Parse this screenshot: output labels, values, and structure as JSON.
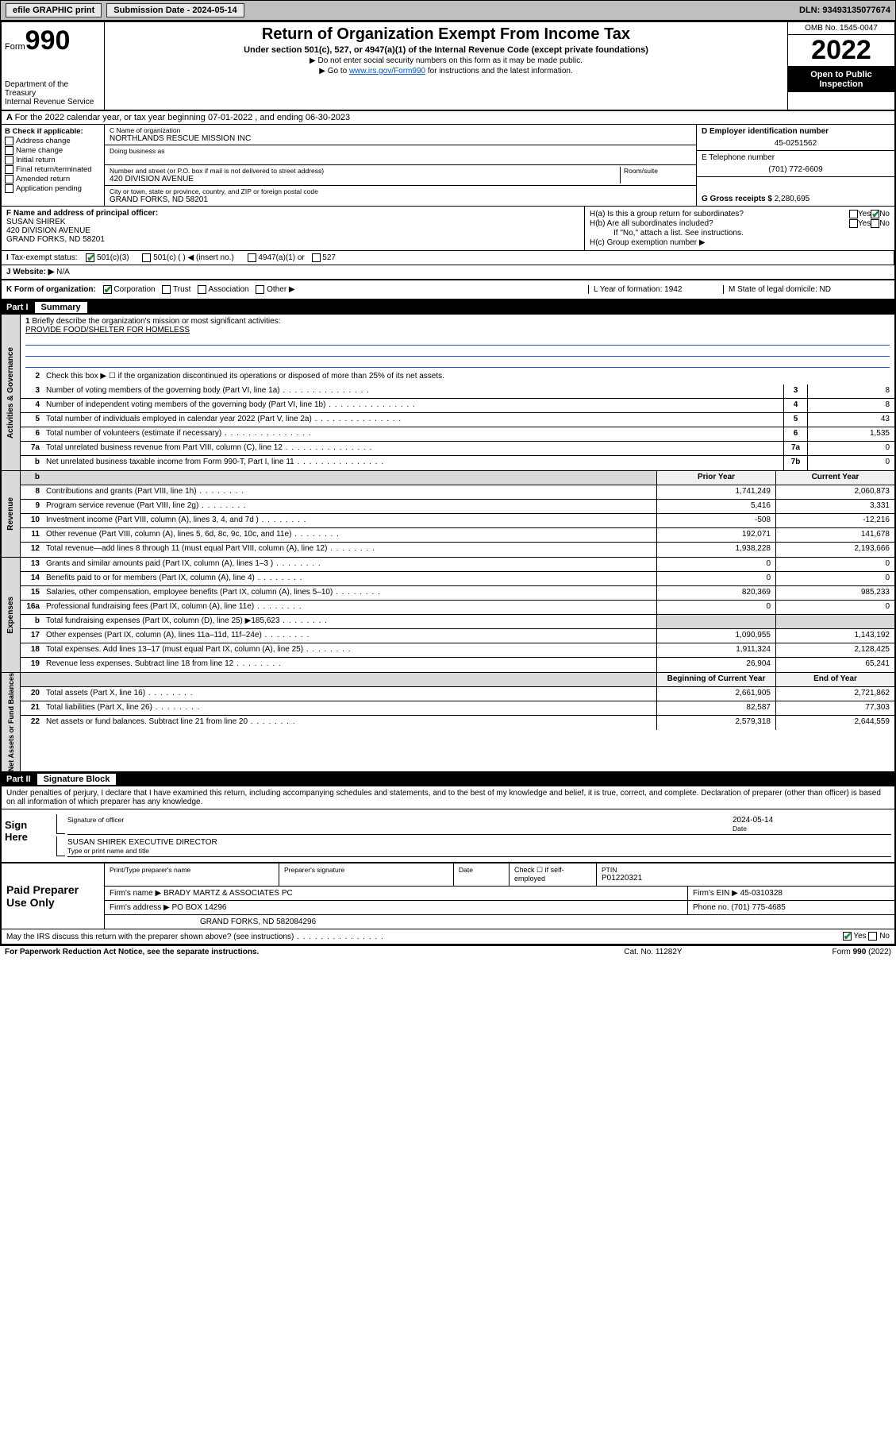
{
  "topbar": {
    "efile": "efile GRAPHIC print",
    "submission_label": "Submission Date - 2024-05-14",
    "dln": "DLN: 93493135077674"
  },
  "header": {
    "form_word": "Form",
    "form_num": "990",
    "title": "Return of Organization Exempt From Income Tax",
    "subtitle": "Under section 501(c), 527, or 4947(a)(1) of the Internal Revenue Code (except private foundations)",
    "note1": "▶ Do not enter social security numbers on this form as it may be made public.",
    "note2_pre": "▶ Go to ",
    "note2_link": "www.irs.gov/Form990",
    "note2_post": " for instructions and the latest information.",
    "omb": "OMB No. 1545-0047",
    "year": "2022",
    "open": "Open to Public Inspection",
    "dept": "Department of the Treasury",
    "irs": "Internal Revenue Service"
  },
  "row_a": "For the 2022 calendar year, or tax year beginning 07-01-2022   , and ending 06-30-2023",
  "col_b": {
    "header": "B Check if applicable:",
    "items": [
      "Address change",
      "Name change",
      "Initial return",
      "Final return/terminated",
      "Amended return",
      "Application pending"
    ]
  },
  "col_c": {
    "c_label": "C Name of organization",
    "c_name": "NORTHLANDS RESCUE MISSION INC",
    "dba_label": "Doing business as",
    "addr_label": "Number and street (or P.O. box if mail is not delivered to street address)",
    "room_label": "Room/suite",
    "addr": "420 DIVISION AVENUE",
    "city_label": "City or town, state or province, country, and ZIP or foreign postal code",
    "city": "GRAND FORKS, ND  58201"
  },
  "col_d": {
    "d_label": "D Employer identification number",
    "ein": "45-0251562",
    "e_label": "E Telephone number",
    "phone": "(701) 772-6609",
    "g_label": "G Gross receipts $",
    "gross": "2,280,695"
  },
  "col_f": {
    "label": "F Name and address of principal officer:",
    "name": "SUSAN SHIREK",
    "addr1": "420 DIVISION AVENUE",
    "addr2": "GRAND FORKS, ND  58201"
  },
  "col_h": {
    "ha": "H(a)  Is this a group return for subordinates?",
    "hb": "H(b)  Are all subordinates included?",
    "hb_note": "If \"No,\" attach a list. See instructions.",
    "hc": "H(c)  Group exemption number ▶",
    "yes": "Yes",
    "no": "No"
  },
  "row_i": {
    "label": "Tax-exempt status:",
    "opt1": "501(c)(3)",
    "opt2": "501(c) (  ) ◀ (insert no.)",
    "opt3": "4947(a)(1) or",
    "opt4": "527"
  },
  "row_j": {
    "label": "Website: ▶",
    "val": "N/A"
  },
  "row_k": {
    "label": "K Form of organization:",
    "opts": [
      "Corporation",
      "Trust",
      "Association",
      "Other ▶"
    ],
    "l": "L Year of formation: 1942",
    "m": "M State of legal domicile: ND"
  },
  "part1": {
    "num": "Part I",
    "title": "Summary"
  },
  "governance": {
    "label": "Activities & Governance",
    "q1": "Briefly describe the organization's mission or most significant activities:",
    "q1_ans": "PROVIDE FOOD/SHELTER FOR HOMELESS",
    "q2": "Check this box ▶ ☐  if the organization discontinued its operations or disposed of more than 25% of its net assets.",
    "rows": [
      {
        "n": "3",
        "t": "Number of voting members of the governing body (Part VI, line 1a)",
        "b": "3",
        "v": "8"
      },
      {
        "n": "4",
        "t": "Number of independent voting members of the governing body (Part VI, line 1b)",
        "b": "4",
        "v": "8"
      },
      {
        "n": "5",
        "t": "Total number of individuals employed in calendar year 2022 (Part V, line 2a)",
        "b": "5",
        "v": "43"
      },
      {
        "n": "6",
        "t": "Total number of volunteers (estimate if necessary)",
        "b": "6",
        "v": "1,535"
      },
      {
        "n": "7a",
        "t": "Total unrelated business revenue from Part VIII, column (C), line 12",
        "b": "7a",
        "v": "0"
      },
      {
        "n": "b",
        "t": "Net unrelated business taxable income from Form 990-T, Part I, line 11",
        "b": "7b",
        "v": "0"
      }
    ]
  },
  "revenue": {
    "label": "Revenue",
    "hdr_prior": "Prior Year",
    "hdr_curr": "Current Year",
    "rows": [
      {
        "n": "8",
        "t": "Contributions and grants (Part VIII, line 1h)",
        "p": "1,741,249",
        "c": "2,060,873"
      },
      {
        "n": "9",
        "t": "Program service revenue (Part VIII, line 2g)",
        "p": "5,416",
        "c": "3,331"
      },
      {
        "n": "10",
        "t": "Investment income (Part VIII, column (A), lines 3, 4, and 7d )",
        "p": "-508",
        "c": "-12,216"
      },
      {
        "n": "11",
        "t": "Other revenue (Part VIII, column (A), lines 5, 6d, 8c, 9c, 10c, and 11e)",
        "p": "192,071",
        "c": "141,678"
      },
      {
        "n": "12",
        "t": "Total revenue—add lines 8 through 11 (must equal Part VIII, column (A), line 12)",
        "p": "1,938,228",
        "c": "2,193,666"
      }
    ]
  },
  "expenses": {
    "label": "Expenses",
    "rows": [
      {
        "n": "13",
        "t": "Grants and similar amounts paid (Part IX, column (A), lines 1–3 )",
        "p": "0",
        "c": "0"
      },
      {
        "n": "14",
        "t": "Benefits paid to or for members (Part IX, column (A), line 4)",
        "p": "0",
        "c": "0"
      },
      {
        "n": "15",
        "t": "Salaries, other compensation, employee benefits (Part IX, column (A), lines 5–10)",
        "p": "820,369",
        "c": "985,233"
      },
      {
        "n": "16a",
        "t": "Professional fundraising fees (Part IX, column (A), line 11e)",
        "p": "0",
        "c": "0"
      },
      {
        "n": "b",
        "t": "Total fundraising expenses (Part IX, column (D), line 25) ▶185,623",
        "p": "",
        "c": "",
        "gray": true
      },
      {
        "n": "17",
        "t": "Other expenses (Part IX, column (A), lines 11a–11d, 11f–24e)",
        "p": "1,090,955",
        "c": "1,143,192"
      },
      {
        "n": "18",
        "t": "Total expenses. Add lines 13–17 (must equal Part IX, column (A), line 25)",
        "p": "1,911,324",
        "c": "2,128,425"
      },
      {
        "n": "19",
        "t": "Revenue less expenses. Subtract line 18 from line 12",
        "p": "26,904",
        "c": "65,241"
      }
    ]
  },
  "netassets": {
    "label": "Net Assets or Fund Balances",
    "hdr_beg": "Beginning of Current Year",
    "hdr_end": "End of Year",
    "rows": [
      {
        "n": "20",
        "t": "Total assets (Part X, line 16)",
        "p": "2,661,905",
        "c": "2,721,862"
      },
      {
        "n": "21",
        "t": "Total liabilities (Part X, line 26)",
        "p": "82,587",
        "c": "77,303"
      },
      {
        "n": "22",
        "t": "Net assets or fund balances. Subtract line 21 from line 20",
        "p": "2,579,318",
        "c": "2,644,559"
      }
    ]
  },
  "part2": {
    "num": "Part II",
    "title": "Signature Block"
  },
  "sig": {
    "decl": "Under penalties of perjury, I declare that I have examined this return, including accompanying schedules and statements, and to the best of my knowledge and belief, it is true, correct, and complete. Declaration of preparer (other than officer) is based on all information of which preparer has any knowledge.",
    "sign_here": "Sign Here",
    "sig_officer": "Signature of officer",
    "date_label": "Date",
    "date": "2024-05-14",
    "name": "SUSAN SHIREK  EXECUTIVE DIRECTOR",
    "name_label": "Type or print name and title"
  },
  "prep": {
    "label": "Paid Preparer Use Only",
    "h1": "Print/Type preparer's name",
    "h2": "Preparer's signature",
    "h3": "Date",
    "h4_pre": "Check ☐ if self-employed",
    "h5": "PTIN",
    "ptin": "P01220321",
    "firm_name_label": "Firm's name      ▶",
    "firm_name": "BRADY MARTZ & ASSOCIATES PC",
    "firm_ein_label": "Firm's EIN ▶",
    "firm_ein": "45-0310328",
    "firm_addr_label": "Firm's address ▶",
    "firm_addr1": "PO BOX 14296",
    "firm_addr2": "GRAND FORKS, ND  582084296",
    "phone_label": "Phone no.",
    "phone": "(701) 775-4685"
  },
  "footer": {
    "q": "May the IRS discuss this return with the preparer shown above? (see instructions)",
    "yes": "Yes",
    "no": "No",
    "pra": "For Paperwork Reduction Act Notice, see the separate instructions.",
    "cat": "Cat. No. 11282Y",
    "form": "Form 990 (2022)"
  }
}
